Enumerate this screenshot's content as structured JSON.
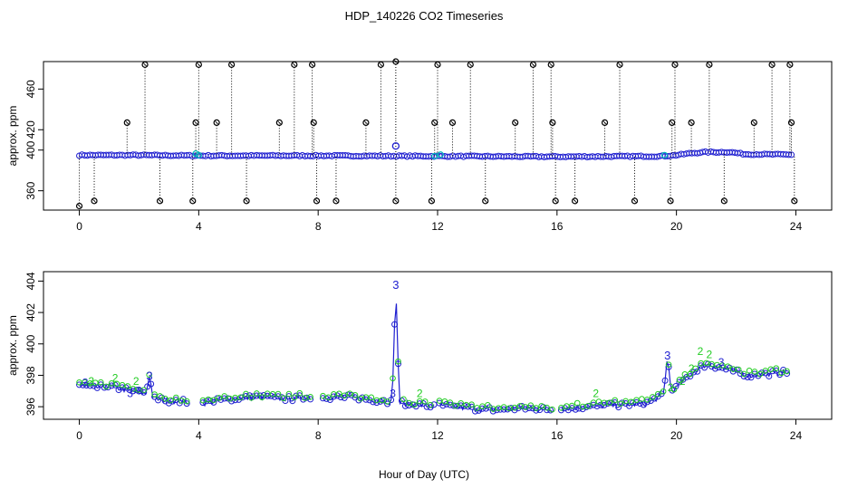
{
  "title": "HDP_140226  CO2 Timeseries",
  "xlabel": "Hour of Day (UTC)",
  "chart_data": [
    {
      "type": "scatter",
      "ylabel": "approx. ppm",
      "xlim": [
        -1.2,
        25.2
      ],
      "ylim": [
        341,
        487
      ],
      "xticks": [
        0,
        4,
        8,
        12,
        16,
        20,
        24
      ],
      "yticks": [
        360,
        400,
        420,
        460
      ],
      "baseline": [
        [
          0.0,
          395.0
        ],
        [
          2.0,
          395.0
        ],
        [
          4.0,
          394.5
        ],
        [
          8.0,
          394.5
        ],
        [
          12.0,
          394.0
        ],
        [
          16.0,
          393.5
        ],
        [
          19.5,
          394.0
        ],
        [
          20.0,
          395.0
        ],
        [
          20.5,
          397.0
        ],
        [
          21.0,
          398.0
        ],
        [
          21.8,
          398.0
        ],
        [
          22.3,
          396.0
        ],
        [
          24.0,
          395.5
        ]
      ],
      "cyan_points": [
        [
          3.9,
          396.5
        ],
        [
          4.0,
          395.0
        ],
        [
          11.9,
          394.0
        ],
        [
          12.1,
          395.5
        ],
        [
          19.6,
          395.0
        ]
      ],
      "outliers": [
        [
          0.0,
          345
        ],
        [
          0.5,
          350
        ],
        [
          1.6,
          427
        ],
        [
          2.2,
          484
        ],
        [
          2.7,
          350
        ],
        [
          3.8,
          350
        ],
        [
          3.9,
          427
        ],
        [
          4.0,
          484
        ],
        [
          4.6,
          427
        ],
        [
          5.1,
          484
        ],
        [
          5.6,
          350
        ],
        [
          6.7,
          427
        ],
        [
          7.2,
          484
        ],
        [
          7.8,
          484
        ],
        [
          7.85,
          427
        ],
        [
          7.95,
          350
        ],
        [
          8.6,
          350
        ],
        [
          9.6,
          427
        ],
        [
          10.1,
          484
        ],
        [
          10.6,
          350
        ],
        [
          10.6,
          487
        ],
        [
          11.8,
          350
        ],
        [
          11.9,
          427
        ],
        [
          12.0,
          484
        ],
        [
          12.5,
          427
        ],
        [
          13.1,
          484
        ],
        [
          13.6,
          350
        ],
        [
          14.6,
          427
        ],
        [
          15.2,
          484
        ],
        [
          15.8,
          484
        ],
        [
          15.85,
          427
        ],
        [
          15.95,
          350
        ],
        [
          16.6,
          350
        ],
        [
          17.6,
          427
        ],
        [
          18.1,
          484
        ],
        [
          18.6,
          350
        ],
        [
          19.8,
          350
        ],
        [
          19.85,
          427
        ],
        [
          19.95,
          484
        ],
        [
          20.5,
          427
        ],
        [
          21.1,
          484
        ],
        [
          21.6,
          350
        ],
        [
          22.6,
          427
        ],
        [
          23.2,
          484
        ],
        [
          23.8,
          484
        ],
        [
          23.85,
          427
        ],
        [
          23.95,
          350
        ]
      ]
    },
    {
      "type": "line",
      "ylabel": "approx. ppm",
      "xlim": [
        -1.2,
        25.2
      ],
      "ylim": [
        395.2,
        404.6
      ],
      "xticks": [
        0,
        4,
        8,
        12,
        16,
        20,
        24
      ],
      "yticks": [
        396,
        398,
        400,
        402,
        404
      ],
      "gaps": [
        [
          3.7,
          4.1
        ],
        [
          7.75,
          8.1
        ],
        [
          11.9,
          12.05
        ],
        [
          15.9,
          16.1
        ]
      ],
      "series_profile": [
        [
          0.0,
          397.4
        ],
        [
          0.5,
          397.2
        ],
        [
          1.0,
          397.3
        ],
        [
          1.5,
          397.1
        ],
        [
          2.0,
          396.9
        ],
        [
          2.3,
          396.8
        ],
        [
          2.5,
          396.5
        ],
        [
          3.0,
          396.4
        ],
        [
          3.7,
          396.3
        ],
        [
          4.1,
          396.2
        ],
        [
          5.0,
          396.5
        ],
        [
          6.0,
          396.6
        ],
        [
          7.0,
          396.5
        ],
        [
          7.75,
          396.6
        ],
        [
          8.1,
          396.6
        ],
        [
          9.0,
          396.6
        ],
        [
          10.0,
          396.4
        ],
        [
          10.5,
          396.3
        ],
        [
          11.0,
          396.2
        ],
        [
          11.9,
          396.0
        ],
        [
          12.05,
          396.1
        ],
        [
          13.0,
          395.9
        ],
        [
          14.0,
          395.8
        ],
        [
          15.0,
          395.9
        ],
        [
          15.9,
          395.8
        ],
        [
          16.1,
          395.9
        ],
        [
          17.0,
          396.0
        ],
        [
          18.0,
          396.1
        ],
        [
          19.0,
          396.2
        ],
        [
          19.5,
          396.7
        ],
        [
          20.0,
          397.2
        ],
        [
          20.3,
          397.8
        ],
        [
          20.7,
          398.4
        ],
        [
          21.0,
          398.7
        ],
        [
          21.5,
          398.5
        ],
        [
          22.0,
          398.2
        ],
        [
          22.5,
          398.0
        ],
        [
          23.0,
          398.1
        ],
        [
          23.8,
          398.2
        ]
      ],
      "spikes": [
        {
          "x": 2.35,
          "y": 398.0,
          "label": "3"
        },
        {
          "x": 10.6,
          "y": 403.8,
          "label": "3"
        },
        {
          "x": 19.7,
          "y": 399.3,
          "label": "3"
        }
      ],
      "markers_two": [
        [
          0.4,
          397.4
        ],
        [
          1.2,
          397.6
        ],
        [
          1.9,
          397.4
        ],
        [
          11.4,
          396.6
        ],
        [
          17.3,
          396.6
        ],
        [
          19.8,
          397.0
        ],
        [
          20.2,
          397.4
        ],
        [
          20.5,
          398.2
        ],
        [
          20.8,
          399.3
        ],
        [
          21.1,
          399.1
        ]
      ],
      "markers_three": [
        [
          0.2,
          397.3
        ],
        [
          1.7,
          396.6
        ],
        [
          2.0,
          396.8
        ],
        [
          10.5,
          396.6
        ],
        [
          21.5,
          398.6
        ]
      ]
    }
  ]
}
